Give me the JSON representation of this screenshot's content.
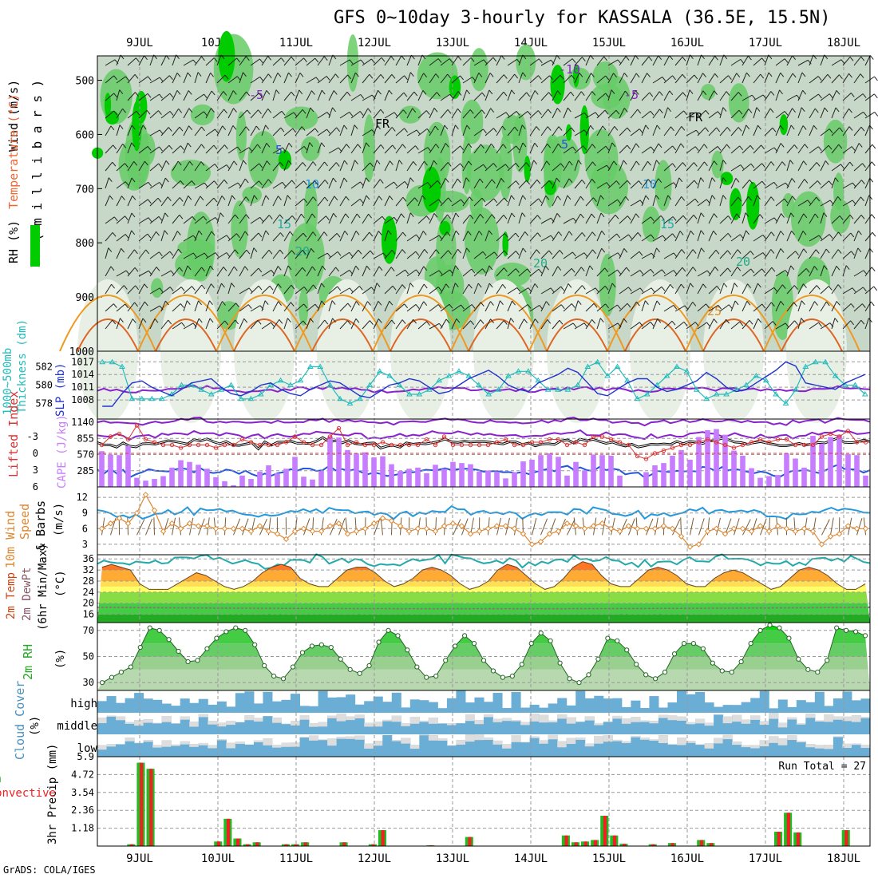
{
  "header": {
    "title": "GFS 0~10day 3-hourly for KASSALA (36.5E, 15.5N)",
    "credit": "GrADS: COLA/IGES"
  },
  "chart_data": {
    "type": "meteogram",
    "dates": [
      "9JUL",
      "10JUL",
      "11JUL",
      "12JUL",
      "13JUL",
      "14JUL",
      "15JUL",
      "16JUL",
      "17JUL",
      "18JUL"
    ],
    "colors": {
      "rh_dark": "#00cc00",
      "rh_mid": "#66cc66",
      "rh_light": "#c8d8c8",
      "cape": "#c77dff",
      "slp": "#2233cc",
      "thick": "#22bbbb",
      "lifted": "#dd3333",
      "wind": "#dd8833",
      "cloud": "#6aaed6"
    },
    "panels": {
      "upper_air": {
        "ylabels": [
          "Wind (m/s)",
          "Temperature (°C)",
          "RH (%)"
        ],
        "yunit": "( m i l l i b a r s )",
        "yticks": [
          "500",
          "600",
          "700",
          "800",
          "900",
          "1000"
        ],
        "contour_labels": [
          {
            "text": "-10",
            "color": "#8822cc"
          },
          {
            "text": "-5",
            "color": "#8822cc"
          },
          {
            "text": "-5",
            "color": "#8822cc"
          },
          {
            "text": "FR",
            "color": "#000000"
          },
          {
            "text": "FR",
            "color": "#000000"
          },
          {
            "text": "5",
            "color": "#2255dd"
          },
          {
            "text": "5",
            "color": "#2255dd"
          },
          {
            "text": "10",
            "color": "#2299dd"
          },
          {
            "text": "10",
            "color": "#2299dd"
          },
          {
            "text": "15",
            "color": "#22aaaa"
          },
          {
            "text": "15",
            "color": "#22aaaa"
          },
          {
            "text": "20",
            "color": "#22aa88"
          },
          {
            "text": "20",
            "color": "#22aa88"
          },
          {
            "text": "20",
            "color": "#22aa88"
          },
          {
            "text": "25",
            "color": "#dd8822"
          }
        ],
        "isotherms": {
          "minus10": 528,
          "minus5": 565,
          "fr": 600,
          "plus5": 640,
          "plus10": 700,
          "plus15": 765,
          "plus20": 825
        }
      },
      "slp": {
        "ylabels_left": [
          "1000~500mb",
          "Thickness (dm)"
        ],
        "ylabel_right": "SLP (mb)",
        "yticks_left": [
          "578",
          "580",
          "582"
        ],
        "yticks_right": [
          "1008",
          "1011",
          "1014",
          "1017"
        ],
        "slp": [
          1006.5,
          1006.5,
          1009.5,
          1012.0,
          1012.5,
          1011.0,
          1010.0,
          1009.0,
          1010.5,
          1012.0,
          1012.5,
          1013.0,
          1011.0,
          1009.5,
          1009.0,
          1010.0,
          1011.5,
          1012.0,
          1010.5,
          1009.5,
          1009.0,
          1010.5,
          1011.5,
          1012.5,
          1012.0,
          1010.5,
          1009.0,
          1008.5,
          1010.0,
          1011.5,
          1012.0,
          1013.0,
          1012.5,
          1011.0,
          1009.5,
          1010.0,
          1011.5,
          1013.0,
          1014.0,
          1015.0,
          1013.5,
          1011.5,
          1010.5,
          1010.0,
          1012.0,
          1013.0,
          1014.0,
          1015.5,
          1014.5,
          1012.0,
          1009.5,
          1009.0,
          1010.5,
          1012.0,
          1013.0,
          1013.0,
          1011.0,
          1010.0,
          1010.5,
          1011.5,
          1012.5,
          1014.5,
          1013.0,
          1011.0,
          1010.0,
          1010.5,
          1012.0,
          1013.5,
          1015.0,
          1017.0,
          1016.0,
          1012.0,
          1011.5,
          1011.0,
          1010.5,
          1012.0,
          1013.0,
          1014.0
        ],
        "thickness": [
          582.5,
          582.5,
          582.0,
          578.5,
          578.5,
          578.5,
          578.5,
          579.0,
          580.0,
          580.0,
          579.5,
          579.0,
          579.5,
          580.0,
          578.5,
          578.5,
          579.0,
          580.0,
          580.5,
          580.0,
          580.5,
          582.0,
          582.0,
          580.0,
          578.5,
          578.0,
          578.5,
          580.0,
          581.5,
          581.0,
          580.0,
          579.0,
          579.0,
          579.5,
          580.5,
          581.0,
          581.5,
          581.0,
          580.0,
          579.0,
          579.5,
          581.0,
          581.5,
          581.5,
          580.5,
          579.5,
          579.5,
          579.5,
          580.0,
          582.0,
          582.5,
          581.0,
          582.0,
          580.5,
          578.5,
          579.0,
          580.0,
          581.0,
          582.0,
          581.5,
          579.5,
          578.5,
          579.0,
          579.0,
          579.5,
          580.0,
          581.0,
          580.5,
          579.0,
          578.0,
          579.5,
          582.0,
          582.5,
          582.5,
          581.0,
          580.0,
          580.0,
          579.0
        ]
      },
      "cape": {
        "ylabels_left": [
          "Lifted Index"
        ],
        "ylabel_right": "CAPE (J/kg)",
        "yticks_left": [
          "-3",
          "0",
          "3",
          "6"
        ],
        "yticks_right": [
          "285",
          "570",
          "855",
          "1140"
        ],
        "cape": [
          630,
          570,
          560,
          720,
          160,
          110,
          140,
          190,
          340,
          470,
          440,
          390,
          320,
          170,
          100,
          30,
          200,
          140,
          270,
          380,
          240,
          320,
          530,
          180,
          130,
          280,
          890,
          870,
          650,
          590,
          610,
          520,
          540,
          400,
          280,
          320,
          340,
          240,
          390,
          320,
          440,
          420,
          400,
          270,
          290,
          270,
          150,
          260,
          450,
          480,
          560,
          590,
          530,
          200,
          440,
          290,
          570,
          560,
          550,
          200,
          0,
          0,
          260,
          380,
          420,
          550,
          650,
          480,
          880,
          1000,
          1020,
          920,
          640,
          550,
          330,
          160,
          190,
          210,
          590,
          500,
          340,
          900,
          760,
          880,
          920,
          580,
          560,
          200
        ],
        "lifted": [
          -1.5,
          -3,
          -3.5,
          -2.5,
          -5,
          -2.5,
          -2,
          -1.5,
          -1.5,
          -1,
          -1.5,
          -1.5,
          -1.5,
          -1,
          -1.5,
          -1.5,
          -2.5,
          -2,
          -1.5,
          -1.5,
          -1.5,
          -2,
          -3,
          -2,
          -1.5,
          -1.5,
          -3,
          -4.5,
          -1.5,
          -2,
          -1.5,
          -1.5,
          -2,
          -1.5,
          -1.5,
          -1.5,
          -1.5,
          -2.5,
          -1.5,
          -3,
          -1.5,
          -1.5,
          -1.5,
          -1.5,
          -1.5,
          -2,
          -2.5,
          -1.5,
          -1.5,
          -2,
          -2,
          -2.5,
          -2.5,
          -1.5,
          -2,
          -1.5,
          -3,
          -3,
          -2.5,
          -2,
          -1.5,
          0.5,
          1,
          0,
          -0.5,
          -1,
          -1.5,
          -1.5,
          -2,
          -2.5,
          -2,
          -1.5,
          -1,
          -1.5,
          -2,
          -2.5,
          -2,
          -2.5,
          -2.5,
          -1.5,
          -1.5,
          -1.5,
          -3,
          -3.5,
          -3,
          -4,
          -2,
          -2
        ]
      },
      "wind": {
        "ylabels": [
          "10m Wind",
          "Speed",
          "& Barbs"
        ],
        "yunit": "(m/s)",
        "yticks": [
          "3",
          "6",
          "9",
          "12"
        ],
        "speed": [
          6.0,
          7.0,
          8.0,
          7.0,
          9.0,
          12.5,
          9.5,
          5.5,
          7.0,
          6.0,
          7.0,
          6.5,
          6.5,
          6.0,
          6.0,
          6.0,
          6.0,
          5.5,
          6.5,
          5.5,
          5.0,
          4.0,
          5.5,
          6.0,
          5.5,
          5.5,
          6.5,
          7.0,
          5.0,
          5.5,
          6.0,
          7.0,
          8.0,
          7.5,
          6.5,
          5.5,
          6.0,
          6.0,
          5.5,
          6.5,
          7.0,
          6.5,
          5.0,
          5.5,
          6.0,
          6.5,
          6.5,
          6.0,
          5.0,
          3.0,
          3.5,
          5.0,
          5.5,
          7.0,
          6.5,
          6.0,
          6.5,
          7.0,
          6.0,
          5.5,
          6.5,
          6.0,
          6.0,
          6.0,
          6.5,
          6.0,
          4.5,
          2.5,
          3.0,
          5.5,
          6.0,
          5.0,
          6.0,
          6.0,
          5.5,
          6.5,
          5.5,
          6.5,
          6.0,
          5.5,
          6.0,
          5.5,
          3.0,
          4.5,
          5.0,
          6.5,
          6.0,
          6.0
        ]
      },
      "temp": {
        "ylabels": [
          "2m Temp",
          "2m DewPt",
          "(6hr Min/Max)"
        ],
        "yunit": "(°C)",
        "yticks": [
          "16",
          "20",
          "24",
          "28",
          "32",
          "36"
        ],
        "temp": [
          33,
          34,
          33,
          32,
          27,
          25,
          25,
          25,
          27,
          29,
          31,
          30,
          28,
          26,
          25,
          26,
          28,
          31,
          33,
          34,
          33,
          29,
          27,
          26,
          26,
          29,
          32,
          33,
          33,
          31,
          28,
          26,
          27,
          29,
          32,
          33,
          32,
          30,
          27,
          25,
          26,
          28,
          32,
          34,
          33,
          30,
          27,
          25,
          26,
          29,
          33,
          35,
          34,
          30,
          27,
          26,
          26,
          29,
          32,
          33,
          32,
          30,
          27,
          26,
          26,
          29,
          31,
          32,
          31,
          29,
          27,
          25,
          26,
          29,
          32,
          33,
          32,
          30,
          27,
          25,
          25,
          27
        ]
      },
      "rh": {
        "ylabels": [
          "2m RH"
        ],
        "yunit": "(%)",
        "yticks": [
          "30",
          "50",
          "70"
        ],
        "rh": [
          30,
          34,
          38,
          42,
          57,
          72,
          70,
          63,
          54,
          46,
          47,
          56,
          64,
          69,
          72,
          70,
          59,
          43,
          35,
          33,
          42,
          53,
          58,
          59,
          57,
          48,
          40,
          37,
          43,
          61,
          70,
          66,
          55,
          42,
          34,
          35,
          47,
          58,
          66,
          60,
          47,
          39,
          34,
          35,
          44,
          60,
          68,
          62,
          45,
          33,
          30,
          36,
          48,
          64,
          62,
          55,
          44,
          36,
          33,
          38,
          52,
          60,
          60,
          56,
          45,
          39,
          38,
          46,
          60,
          70,
          74,
          72,
          64,
          48,
          40,
          38,
          47,
          72,
          70,
          69,
          66
        ]
      },
      "cloud": {
        "ylabels": [
          "Cloud Cover"
        ],
        "yunit": "(%)",
        "levels": [
          "high",
          "middle",
          "low"
        ]
      },
      "precip": {
        "ylabels": [
          "Total / Rain",
          "Convective"
        ],
        "yunit": "3hr Precip (mm)",
        "yticks": [
          "1.18",
          "2.36",
          "3.54",
          "4.72",
          "5.9"
        ],
        "run_total_label": "Run Total = 27",
        "bars": [
          [
            3,
            0.12
          ],
          [
            4,
            5.5
          ],
          [
            5,
            5.1
          ],
          [
            12,
            0.3
          ],
          [
            13,
            1.8
          ],
          [
            14,
            0.5
          ],
          [
            15,
            0.12
          ],
          [
            16,
            0.25
          ],
          [
            19,
            0.12
          ],
          [
            20,
            0.12
          ],
          [
            21,
            0.25
          ],
          [
            25,
            0.25
          ],
          [
            28,
            0.12
          ],
          [
            29,
            1.05
          ],
          [
            34,
            0.05
          ],
          [
            38,
            0.6
          ],
          [
            48,
            0.7
          ],
          [
            49,
            0.25
          ],
          [
            50,
            0.3
          ],
          [
            51,
            0.4
          ],
          [
            52,
            2.0
          ],
          [
            53,
            0.7
          ],
          [
            54,
            0.15
          ],
          [
            57,
            0.12
          ],
          [
            59,
            0.2
          ],
          [
            62,
            0.4
          ],
          [
            63,
            0.2
          ],
          [
            70,
            0.95
          ],
          [
            71,
            2.2
          ],
          [
            72,
            0.9
          ],
          [
            77,
            1.05
          ]
        ]
      }
    }
  }
}
